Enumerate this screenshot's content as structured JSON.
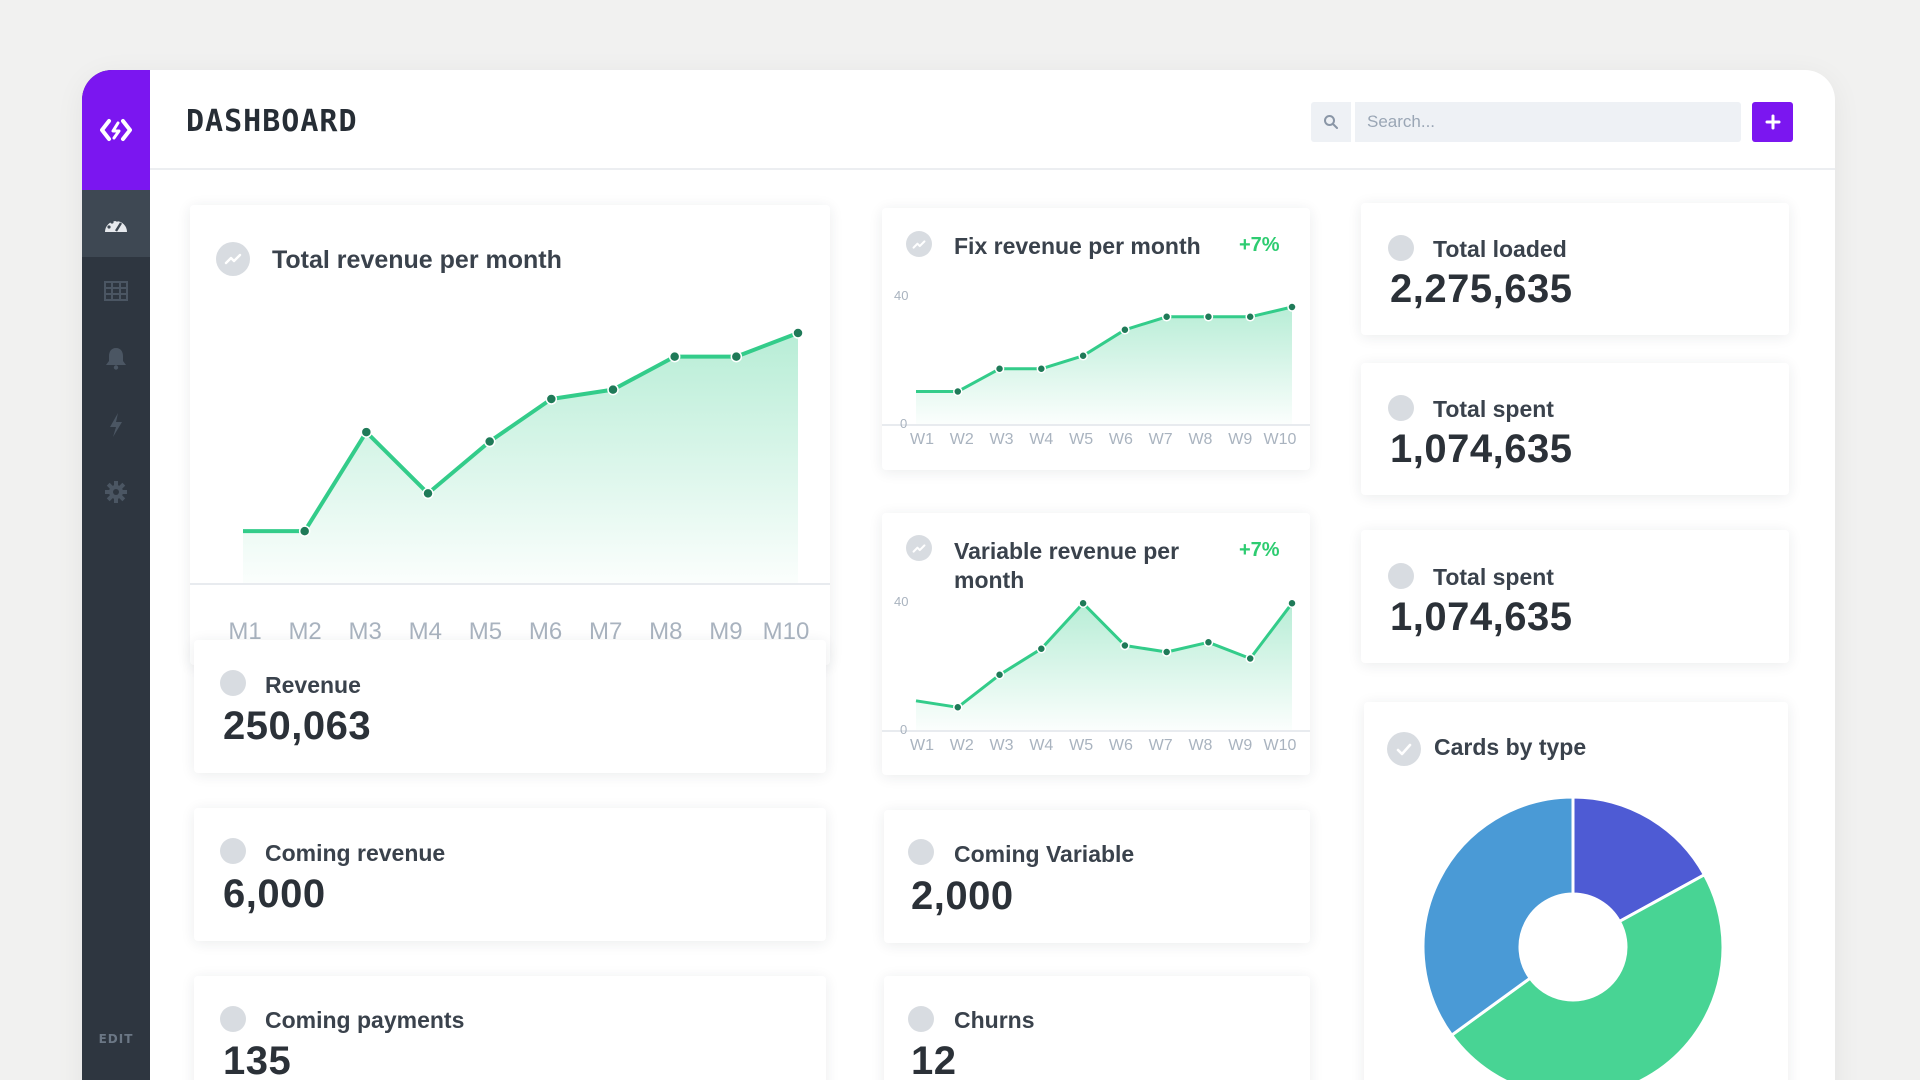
{
  "header": {
    "title": "DASHBOARD",
    "search_placeholder": "Search...",
    "add_label": "+"
  },
  "sidebar": {
    "items": [
      {
        "icon": "dashboard-icon",
        "active": true
      },
      {
        "icon": "table-icon",
        "active": false
      },
      {
        "icon": "bell-icon",
        "active": false
      },
      {
        "icon": "lightning-icon",
        "active": false
      },
      {
        "icon": "gear-icon",
        "active": false
      }
    ],
    "edit_label": "EDIT"
  },
  "cards": {
    "total_revenue": {
      "title": "Total revenue per month"
    },
    "fix_revenue": {
      "title": "Fix revenue per month",
      "badge": "+7%"
    },
    "variable_revenue": {
      "title_line1": "Variable revenue per",
      "title_line2": "month",
      "badge": "+7%"
    },
    "total_loaded": {
      "title": "Total loaded",
      "value": "2,275,635"
    },
    "total_spent_1": {
      "title": "Total spent",
      "value": "1,074,635"
    },
    "total_spent_2": {
      "title": "Total spent",
      "value": "1,074,635"
    },
    "revenue": {
      "title": "Revenue",
      "value": "250,063"
    },
    "coming_revenue": {
      "title": "Coming revenue",
      "value": "6,000"
    },
    "coming_payments": {
      "title": "Coming payments",
      "value": "135"
    },
    "coming_variable": {
      "title": "Coming Variable",
      "value": "2,000"
    },
    "churns": {
      "title": "Churns",
      "value": "12"
    },
    "cards_by_type": {
      "title": "Cards by type"
    }
  },
  "colors": {
    "accent": "#7b16f0",
    "sidebar": "#2e3640",
    "line": "#33cc8a",
    "badge": "#2ecc71",
    "pie_blue": "#4a9ad6",
    "pie_indigo": "#4e5bd4",
    "pie_green": "#48d494"
  },
  "chart_data": [
    {
      "type": "area",
      "categories": [
        "M1",
        "M2",
        "M3",
        "M4",
        "M5",
        "M6",
        "M7",
        "M8",
        "M9",
        "M10"
      ],
      "values": [
        0.55,
        0.55,
        1.6,
        0.95,
        1.5,
        1.95,
        2.05,
        2.4,
        2.4,
        2.65
      ],
      "ylim": [
        0,
        3
      ]
    },
    {
      "type": "area",
      "categories": [
        "W1",
        "W2",
        "W3",
        "W4",
        "W5",
        "W6",
        "W7",
        "W8",
        "W9",
        "W10"
      ],
      "values": [
        10,
        10,
        17,
        17,
        21,
        29,
        33,
        33,
        33,
        36
      ],
      "ylim": [
        0,
        40
      ],
      "yticks": [
        "0",
        "40"
      ]
    },
    {
      "type": "area",
      "categories": [
        "W1",
        "W2",
        "W3",
        "W4",
        "W5",
        "W6",
        "W7",
        "W8",
        "W9",
        "W10"
      ],
      "values": [
        9,
        7,
        17,
        25,
        39,
        26,
        24,
        27,
        22,
        39
      ],
      "ylim": [
        0,
        40
      ],
      "yticks": [
        "0",
        "40"
      ]
    },
    {
      "type": "pie",
      "categories": [
        "Indigo",
        "Green",
        "Blue"
      ],
      "values": [
        17,
        48,
        35
      ]
    }
  ]
}
